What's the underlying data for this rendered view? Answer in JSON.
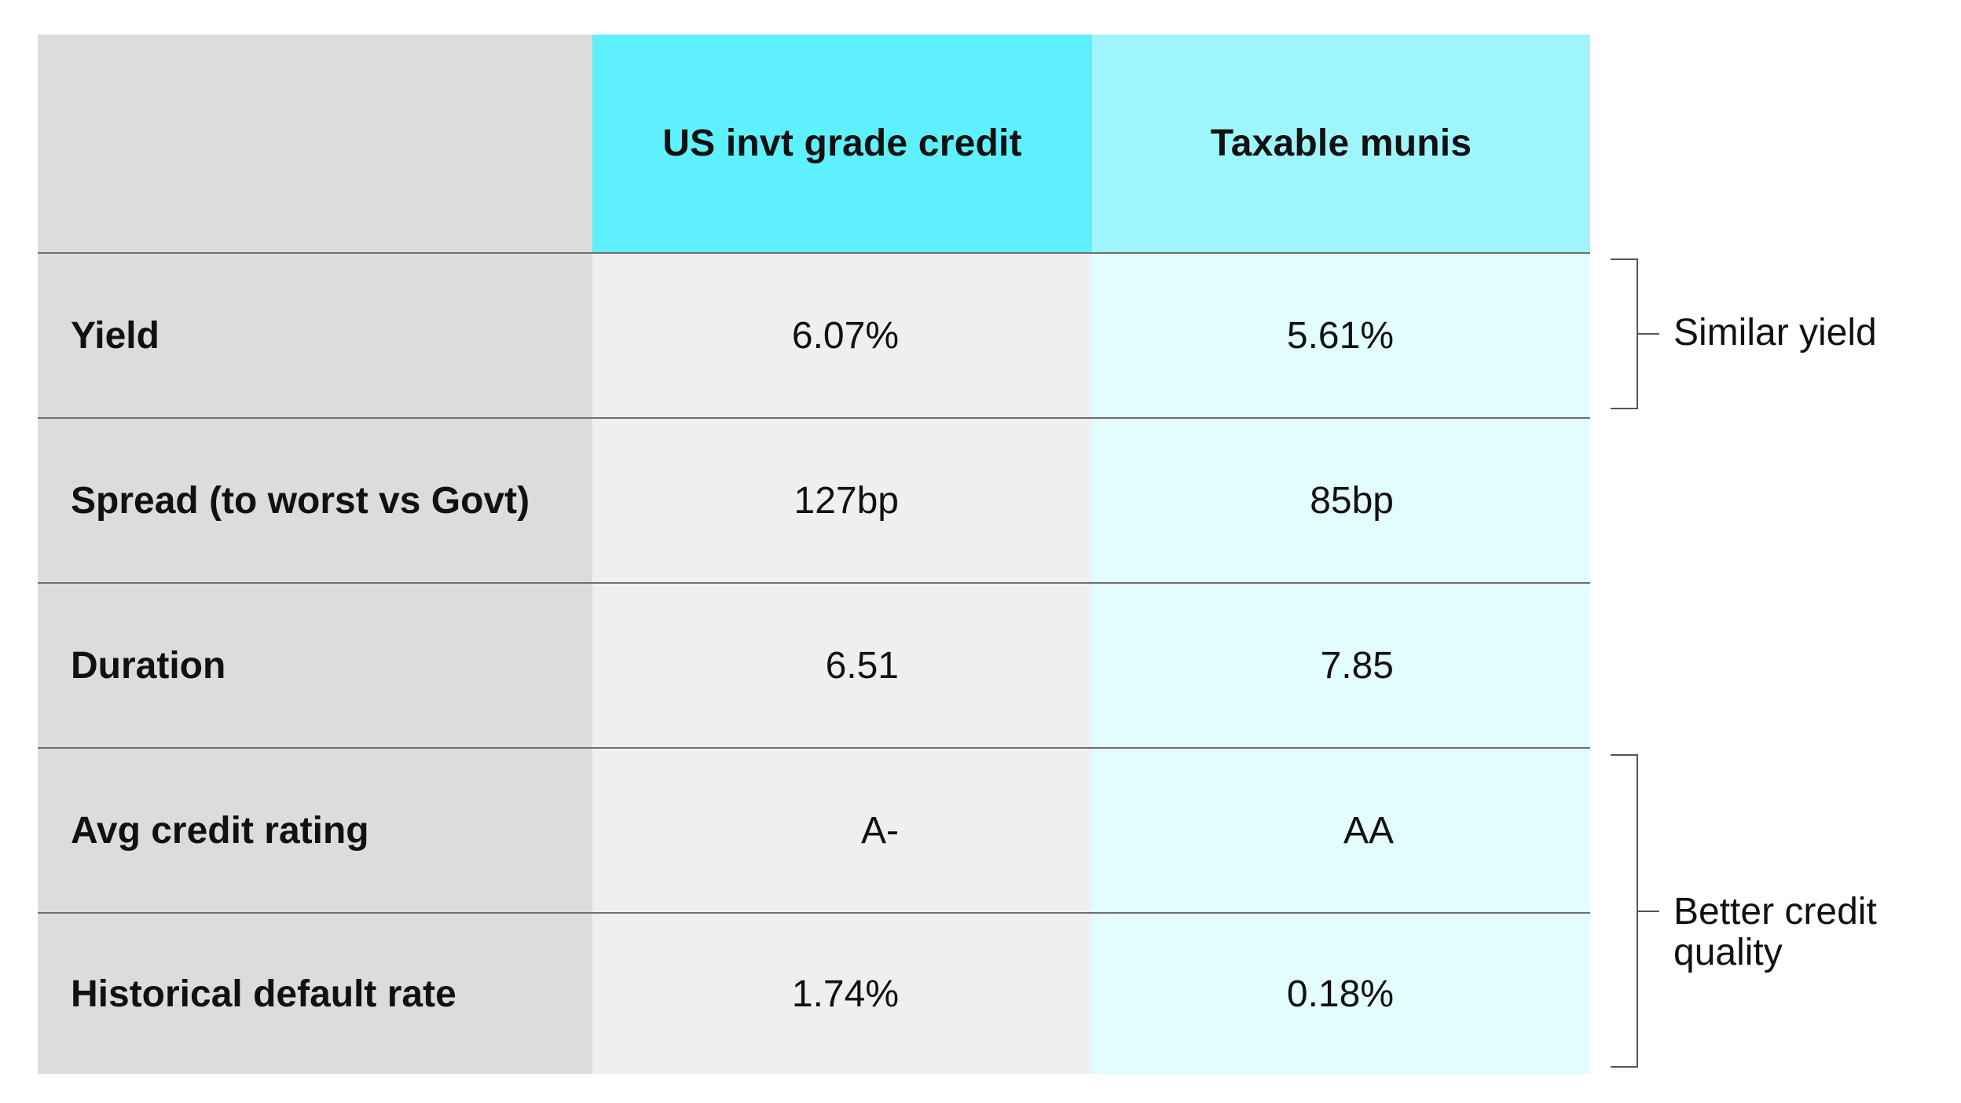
{
  "chart_data": {
    "type": "table",
    "columns": [
      "",
      "US invt grade credit",
      "Taxable munis"
    ],
    "rows": [
      {
        "label": "Yield",
        "values": [
          "6.07%",
          "5.61%"
        ]
      },
      {
        "label": "Spread (to worst vs Govt)",
        "values": [
          "127bp",
          "85bp"
        ]
      },
      {
        "label": "Duration",
        "values": [
          "6.51",
          "7.85"
        ]
      },
      {
        "label": "Avg credit rating",
        "values": [
          "A-",
          "AA"
        ]
      },
      {
        "label": "Historical default rate",
        "values": [
          "1.74%",
          "0.18%"
        ]
      }
    ],
    "annotations": [
      {
        "text": "Similar yield",
        "rows": [
          "Yield"
        ]
      },
      {
        "text": "Better credit quality",
        "lines": [
          "Better credit",
          "quality"
        ],
        "rows": [
          "Avg credit rating",
          "Historical default rate"
        ]
      }
    ]
  },
  "colors": {
    "label_column": "#dcdcdc",
    "ig_header": "#5ef1fd",
    "ig_body": "#efefef",
    "munis_header": "#9ef6fc",
    "munis_body": "#e3fcfe",
    "divider": "#6f6f6f",
    "bracket": "#555555"
  }
}
